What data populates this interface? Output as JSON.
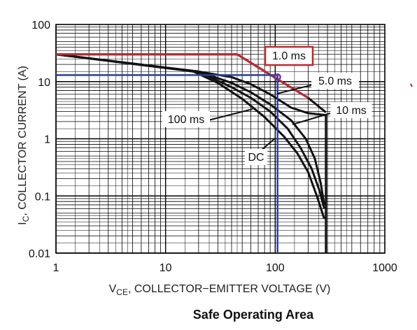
{
  "chart_data": {
    "type": "line",
    "title": "Safe Operating Area",
    "xlabel": {
      "main": "V",
      "sub": "CE",
      "rest": ", COLLECTOR−EMITTER VOLTAGE (V)"
    },
    "ylabel": {
      "main": "I",
      "sub": "C",
      "rest": ", COLLECTOR CURRENT (A)"
    },
    "xscale": "log",
    "yscale": "log",
    "xlim": [
      1,
      1000
    ],
    "ylim": [
      0.01,
      100
    ],
    "grid": true,
    "x_ticks": [
      "1",
      "10",
      "100",
      "1000"
    ],
    "y_ticks": [
      "0.01",
      "0.1",
      "1",
      "10",
      "100"
    ],
    "series": [
      {
        "name": "1.0 ms",
        "x": [
          1,
          45,
          105,
          200,
          290
        ],
        "y": [
          30,
          30,
          11,
          5.2,
          2.9
        ]
      },
      {
        "name": "5.0 ms",
        "x": [
          1,
          20,
          40,
          60,
          90,
          140,
          200,
          290,
          290
        ],
        "y": [
          30,
          15,
          12,
          9,
          6,
          3.5,
          2.8,
          2.6,
          0.01
        ]
      },
      {
        "name": "10 ms",
        "x": [
          1,
          20,
          40,
          60,
          90,
          140,
          190,
          230,
          260,
          280
        ],
        "y": [
          30,
          15,
          9.5,
          6.5,
          4,
          2.1,
          1.0,
          0.45,
          0.17,
          0.07
        ]
      },
      {
        "name": "100 ms",
        "x": [
          1,
          20,
          40,
          60,
          90,
          130,
          170,
          215,
          255,
          280
        ],
        "y": [
          30,
          15,
          8,
          5.2,
          3,
          1.5,
          0.7,
          0.3,
          0.12,
          0.06
        ]
      },
      {
        "name": "DC",
        "x": [
          1,
          18,
          30,
          50,
          80,
          120,
          160,
          200,
          240,
          280
        ],
        "y": [
          30,
          15,
          9.5,
          5,
          2.4,
          1.1,
          0.55,
          0.26,
          0.1,
          0.04
        ]
      }
    ],
    "highlight": {
      "red_limit": {
        "x": [
          1,
          45,
          105,
          200
        ],
        "y": [
          30,
          30,
          11,
          5.2
        ]
      },
      "blue_current": 13,
      "blue_voltage": 105,
      "operating_point": {
        "x": 105,
        "y": 12
      }
    },
    "annotations": [
      "1.0 ms",
      "5.0 ms",
      "10 ms",
      "100 ms",
      "DC"
    ],
    "colors": {
      "curve": "#111111",
      "highlight_red": "#c0272d",
      "highlight_blue": "#2b3fa0",
      "grid": "#000000"
    }
  }
}
